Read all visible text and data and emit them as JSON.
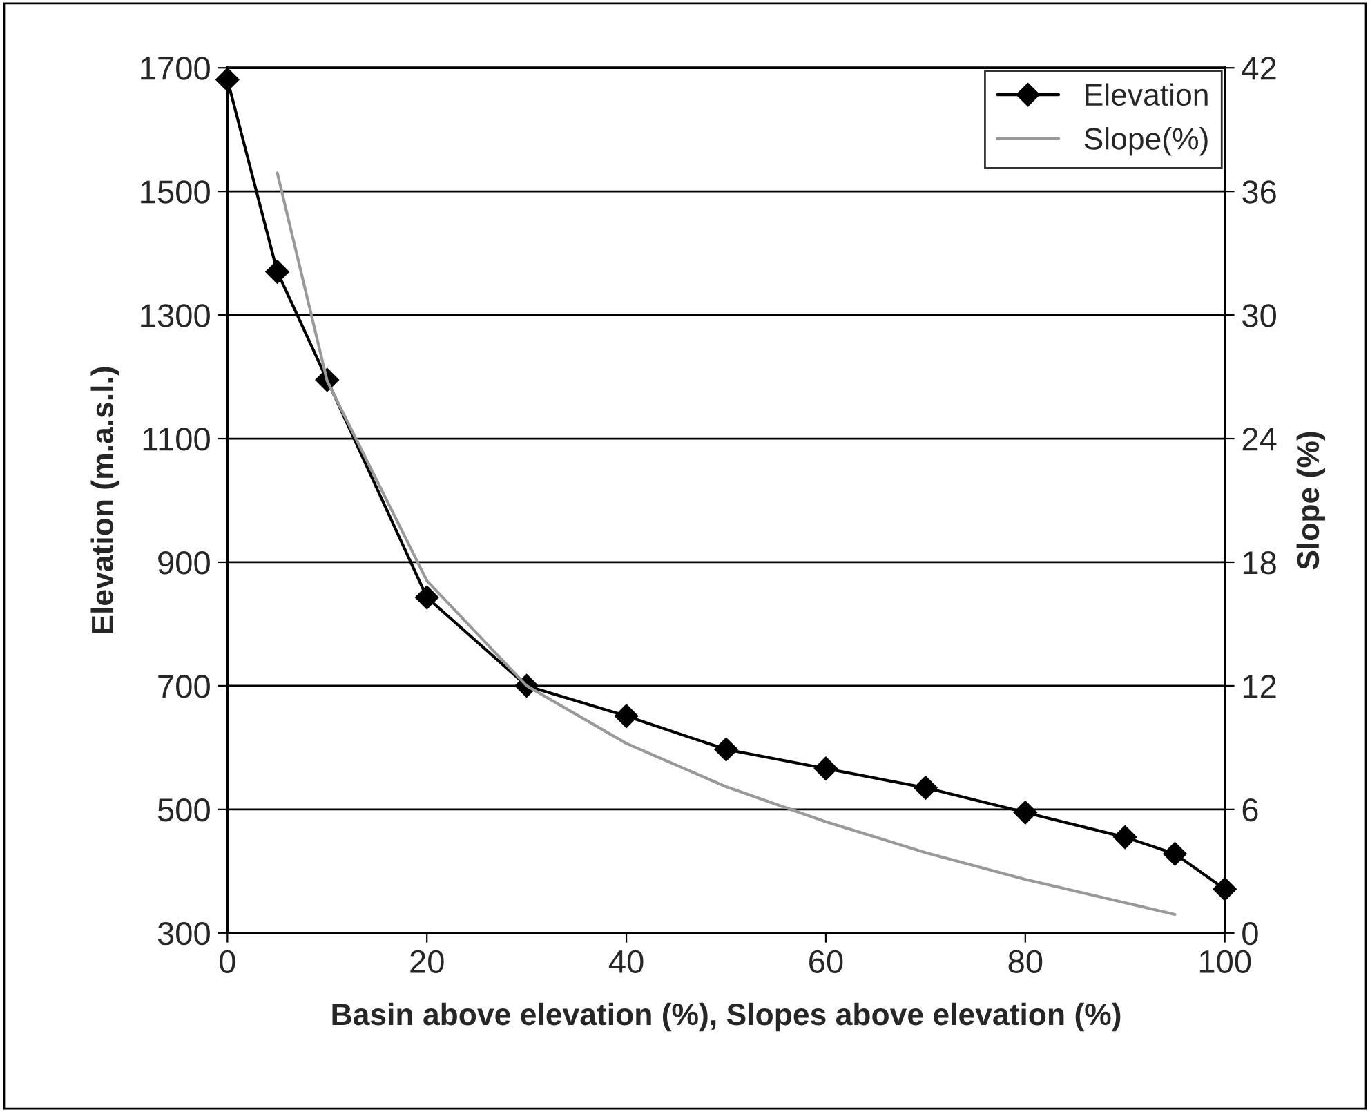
{
  "chart_data": {
    "type": "line",
    "xlabel": "Basin above elevation (%), Slopes above elevation (%)",
    "ylabel": "Elevation (m.a.s.l.)",
    "y2label": "Slope (%)",
    "xlim": [
      0,
      100
    ],
    "xticks": [
      0,
      20,
      40,
      60,
      80,
      100
    ],
    "ylim": [
      300,
      1700
    ],
    "yticks": [
      300,
      500,
      700,
      900,
      1100,
      1300,
      1500,
      1700
    ],
    "y2lim": [
      0,
      42
    ],
    "y2ticks": [
      0,
      6,
      12,
      18,
      24,
      30,
      36,
      42
    ],
    "grid": "y",
    "legend": "top right",
    "series": [
      {
        "name": "Elevation",
        "color": "#000000",
        "marker": "diamond",
        "x": [
          0,
          5,
          10,
          20,
          30,
          40,
          50,
          60,
          70,
          80,
          90,
          95,
          100
        ],
        "values": [
          1681,
          1370,
          1195,
          843,
          700,
          651,
          597,
          566,
          535,
          495,
          455,
          428,
          371
        ]
      },
      {
        "name": "Slope(%)",
        "color": "#999999",
        "axis": "y2",
        "x": [
          5,
          10,
          20,
          30,
          40,
          50,
          60,
          70,
          80,
          95
        ],
        "values": [
          36.9,
          26.8,
          17.1,
          12.0,
          9.2,
          7.1,
          5.4,
          3.9,
          2.6,
          0.9
        ]
      }
    ]
  }
}
